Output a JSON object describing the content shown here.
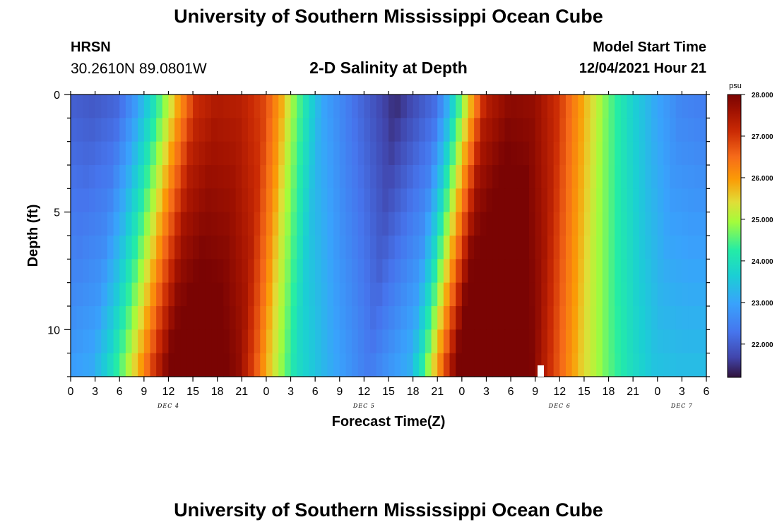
{
  "header": {
    "title": "University of Southern Mississippi Ocean Cube",
    "station": "HRSN",
    "coords": "30.2610N  89.0801W",
    "subtitle": "2-D Salinity at Depth",
    "model_start_label": "Model Start Time",
    "model_start_value": "12/04/2021 Hour 21"
  },
  "footer": {
    "title": "University of Southern Mississippi Ocean Cube"
  },
  "chart_data": {
    "type": "heatmap",
    "title": "2-D Salinity at Depth",
    "xlabel": "Forecast Time(Z)",
    "ylabel": "Depth (ft)",
    "colorbar_label": "psu",
    "colorbar_ticks": [
      "22.000",
      "23.000",
      "24.000",
      "25.000",
      "26.000",
      "27.000",
      "28.000"
    ],
    "colorbar_range": [
      21.2,
      28.0
    ],
    "x_tick_labels": [
      "0",
      "3",
      "6",
      "9",
      "12",
      "15",
      "18",
      "21",
      "0",
      "3",
      "6",
      "9",
      "12",
      "15",
      "18",
      "21",
      "0",
      "3",
      "6",
      "9",
      "12",
      "15",
      "18",
      "21",
      "0",
      "3",
      "6"
    ],
    "day_labels": [
      {
        "label": "DEC 4",
        "at_tick": 4
      },
      {
        "label": "DEC 5",
        "at_tick": 12
      },
      {
        "label": "DEC 6",
        "at_tick": 20
      },
      {
        "label": "DEC 7",
        "at_tick": 25
      }
    ],
    "x_range_hours": [
      0,
      78
    ],
    "y_ticks": [
      0,
      5,
      10
    ],
    "y_range_ft": [
      0,
      12
    ],
    "surface_salinity_profile_psu": [
      [
        0,
        22.0
      ],
      [
        3,
        21.9
      ],
      [
        6,
        22.1
      ],
      [
        8,
        22.8
      ],
      [
        10,
        23.8
      ],
      [
        12,
        25.0
      ],
      [
        13.5,
        26.0
      ],
      [
        15.5,
        27.1
      ],
      [
        18,
        27.4
      ],
      [
        21,
        27.3
      ],
      [
        24,
        26.8
      ],
      [
        26,
        25.8
      ],
      [
        27.5,
        24.8
      ],
      [
        29,
        24.0
      ],
      [
        31,
        23.0
      ],
      [
        35,
        22.2
      ],
      [
        40,
        21.4
      ],
      [
        45,
        22.2
      ],
      [
        46.5,
        23.2
      ],
      [
        48,
        24.6
      ],
      [
        49.5,
        26.0
      ],
      [
        51,
        27.3
      ],
      [
        54,
        27.8
      ],
      [
        57,
        27.7
      ],
      [
        60,
        27.0
      ],
      [
        63,
        25.8
      ],
      [
        66,
        24.6
      ],
      [
        69,
        23.7
      ],
      [
        72,
        23.0
      ],
      [
        75,
        22.5
      ],
      [
        78,
        22.4
      ]
    ],
    "depth_lag_hours_at_bottom": -3.5,
    "bottom_salinity_increase_psu": 1.0
  }
}
